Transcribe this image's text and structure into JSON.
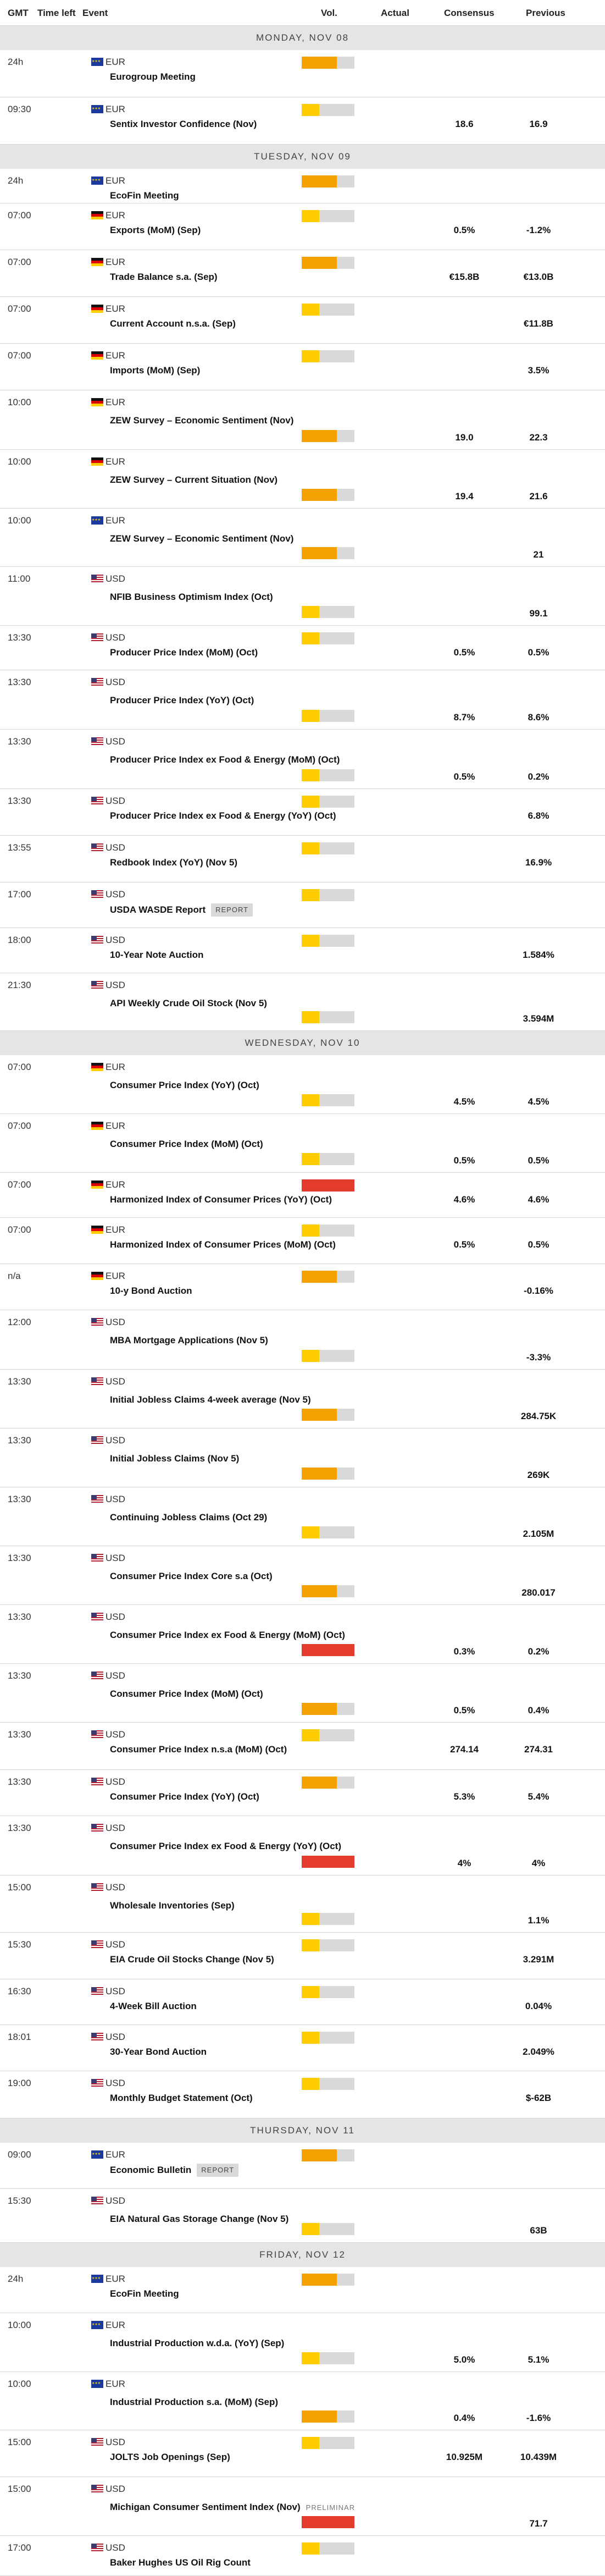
{
  "header": {
    "gmt": "GMT",
    "time_left": "Time left",
    "event": "Event",
    "vol": "Vol.",
    "actual": "Actual",
    "consensus": "Consensus",
    "previous": "Previous"
  },
  "colors": {
    "low": "#ffcc00",
    "medium": "#f5a100",
    "high": "#e33b2e",
    "day_bar": "#e5e5e5"
  },
  "days": [
    {
      "label": "MONDAY, NOV 08",
      "events": [
        {
          "time": "24h",
          "currency": "EUR",
          "flag": "eu-flag-icon",
          "name": "Eurogroup Meeting",
          "volatility": "medium",
          "consensus": "",
          "previous": ""
        },
        {
          "time": "09:30",
          "currency": "EUR",
          "flag": "eu-flag-icon",
          "name": "Sentix Investor Confidence (Nov)",
          "volatility": "low",
          "consensus": "18.6",
          "previous": "16.9"
        }
      ]
    },
    {
      "label": "TUESDAY, NOV 09",
      "events": [
        {
          "time": "24h",
          "currency": "EUR",
          "flag": "eu-flag-icon",
          "name": "EcoFin Meeting",
          "volatility": "medium",
          "consensus": "",
          "previous": ""
        },
        {
          "time": "07:00",
          "currency": "EUR",
          "flag": "de-flag-icon",
          "name": "Exports (MoM) (Sep)",
          "volatility": "low",
          "consensus": "0.5%",
          "previous": "-1.2%"
        },
        {
          "time": "07:00",
          "currency": "EUR",
          "flag": "de-flag-icon",
          "name": "Trade Balance s.a. (Sep)",
          "volatility": "medium",
          "consensus": "€15.8B",
          "previous": "€13.0B"
        },
        {
          "time": "07:00",
          "currency": "EUR",
          "flag": "de-flag-icon",
          "name": "Current Account n.s.a. (Sep)",
          "volatility": "low",
          "consensus": "",
          "previous": "€11.8B"
        },
        {
          "time": "07:00",
          "currency": "EUR",
          "flag": "de-flag-icon",
          "name": "Imports (MoM) (Sep)",
          "volatility": "low",
          "consensus": "",
          "previous": "3.5%"
        },
        {
          "time": "10:00",
          "currency": "EUR",
          "flag": "de-flag-icon",
          "name": "ZEW Survey – Economic Sentiment (Nov)",
          "volatility": "medium",
          "consensus": "19.0",
          "previous": "22.3"
        },
        {
          "time": "10:00",
          "currency": "EUR",
          "flag": "de-flag-icon",
          "name": "ZEW Survey – Current Situation (Nov)",
          "volatility": "medium",
          "consensus": "19.4",
          "previous": "21.6"
        },
        {
          "time": "10:00",
          "currency": "EUR",
          "flag": "eu-flag-icon",
          "name": "ZEW Survey – Economic Sentiment (Nov)",
          "volatility": "medium",
          "consensus": "",
          "previous": "21"
        },
        {
          "time": "11:00",
          "currency": "USD",
          "flag": "us-flag-icon",
          "name": "NFIB Business Optimism Index (Oct)",
          "volatility": "low",
          "consensus": "",
          "previous": "99.1"
        },
        {
          "time": "13:30",
          "currency": "USD",
          "flag": "us-flag-icon",
          "name": "Producer Price Index (MoM) (Oct)",
          "volatility": "low",
          "consensus": "0.5%",
          "previous": "0.5%"
        },
        {
          "time": "13:30",
          "currency": "USD",
          "flag": "us-flag-icon",
          "name": "Producer Price Index (YoY) (Oct)",
          "volatility": "low",
          "consensus": "8.7%",
          "previous": "8.6%"
        },
        {
          "time": "13:30",
          "currency": "USD",
          "flag": "us-flag-icon",
          "name": "Producer Price Index ex Food & Energy (MoM) (Oct)",
          "volatility": "low",
          "consensus": "0.5%",
          "previous": "0.2%"
        },
        {
          "time": "13:30",
          "currency": "USD",
          "flag": "us-flag-icon",
          "name": "Producer Price Index ex Food & Energy (YoY) (Oct)",
          "volatility": "low",
          "consensus": "",
          "previous": "6.8%"
        },
        {
          "time": "13:55",
          "currency": "USD",
          "flag": "us-flag-icon",
          "name": "Redbook Index (YoY) (Nov 5)",
          "volatility": "low",
          "consensus": "",
          "previous": "16.9%"
        },
        {
          "time": "17:00",
          "currency": "USD",
          "flag": "us-flag-icon",
          "name": "USDA WASDE Report",
          "tag": "REPORT",
          "volatility": "low",
          "consensus": "",
          "previous": ""
        },
        {
          "time": "18:00",
          "currency": "USD",
          "flag": "us-flag-icon",
          "name": "10-Year Note Auction",
          "volatility": "low",
          "consensus": "",
          "previous": "1.584%"
        },
        {
          "time": "21:30",
          "currency": "USD",
          "flag": "us-flag-icon",
          "name": "API Weekly Crude Oil Stock (Nov 5)",
          "volatility": "low",
          "consensus": "",
          "previous": "3.594M"
        }
      ]
    },
    {
      "label": "WEDNESDAY, NOV 10",
      "events": [
        {
          "time": "07:00",
          "currency": "EUR",
          "flag": "de-flag-icon",
          "name": "Consumer Price Index (YoY) (Oct)",
          "volatility": "low",
          "consensus": "4.5%",
          "previous": "4.5%"
        },
        {
          "time": "07:00",
          "currency": "EUR",
          "flag": "de-flag-icon",
          "name": "Consumer Price Index (MoM) (Oct)",
          "volatility": "low",
          "consensus": "0.5%",
          "previous": "0.5%"
        },
        {
          "time": "07:00",
          "currency": "EUR",
          "flag": "de-flag-icon",
          "name": "Harmonized Index of Consumer Prices (YoY) (Oct)",
          "volatility": "high",
          "consensus": "4.6%",
          "previous": "4.6%"
        },
        {
          "time": "07:00",
          "currency": "EUR",
          "flag": "de-flag-icon",
          "name": "Harmonized Index of Consumer Prices (MoM) (Oct)",
          "volatility": "low",
          "consensus": "0.5%",
          "previous": "0.5%"
        },
        {
          "time": "n/a",
          "currency": "EUR",
          "flag": "de-flag-icon",
          "name": "10-y Bond Auction",
          "volatility": "medium",
          "consensus": "",
          "previous": "-0.16%"
        },
        {
          "time": "12:00",
          "currency": "USD",
          "flag": "us-flag-icon",
          "name": "MBA Mortgage Applications (Nov 5)",
          "volatility": "low",
          "consensus": "",
          "previous": "-3.3%"
        },
        {
          "time": "13:30",
          "currency": "USD",
          "flag": "us-flag-icon",
          "name": "Initial Jobless Claims 4-week average (Nov 5)",
          "volatility": "medium",
          "consensus": "",
          "previous": "284.75K"
        },
        {
          "time": "13:30",
          "currency": "USD",
          "flag": "us-flag-icon",
          "name": "Initial Jobless Claims (Nov 5)",
          "volatility": "medium",
          "consensus": "",
          "previous": "269K"
        },
        {
          "time": "13:30",
          "currency": "USD",
          "flag": "us-flag-icon",
          "name": "Continuing Jobless Claims (Oct 29)",
          "volatility": "low",
          "consensus": "",
          "previous": "2.105M"
        },
        {
          "time": "13:30",
          "currency": "USD",
          "flag": "us-flag-icon",
          "name": "Consumer Price Index Core s.a (Oct)",
          "volatility": "medium",
          "consensus": "",
          "previous": "280.017"
        },
        {
          "time": "13:30",
          "currency": "USD",
          "flag": "us-flag-icon",
          "name": "Consumer Price Index ex Food & Energy (MoM) (Oct)",
          "volatility": "high",
          "consensus": "0.3%",
          "previous": "0.2%"
        },
        {
          "time": "13:30",
          "currency": "USD",
          "flag": "us-flag-icon",
          "name": "Consumer Price Index (MoM) (Oct)",
          "volatility": "medium",
          "consensus": "0.5%",
          "previous": "0.4%"
        },
        {
          "time": "13:30",
          "currency": "USD",
          "flag": "us-flag-icon",
          "name": "Consumer Price Index n.s.a (MoM) (Oct)",
          "volatility": "low",
          "consensus": "274.14",
          "previous": "274.31"
        },
        {
          "time": "13:30",
          "currency": "USD",
          "flag": "us-flag-icon",
          "name": "Consumer Price Index (YoY) (Oct)",
          "volatility": "medium",
          "consensus": "5.3%",
          "previous": "5.4%"
        },
        {
          "time": "13:30",
          "currency": "USD",
          "flag": "us-flag-icon",
          "name": "Consumer Price Index ex Food & Energy (YoY) (Oct)",
          "volatility": "high",
          "consensus": "4%",
          "previous": "4%"
        },
        {
          "time": "15:00",
          "currency": "USD",
          "flag": "us-flag-icon",
          "name": "Wholesale Inventories (Sep)",
          "volatility": "low",
          "consensus": "",
          "previous": "1.1%"
        },
        {
          "time": "15:30",
          "currency": "USD",
          "flag": "us-flag-icon",
          "name": "EIA Crude Oil Stocks Change (Nov 5)",
          "volatility": "low",
          "consensus": "",
          "previous": "3.291M"
        },
        {
          "time": "16:30",
          "currency": "USD",
          "flag": "us-flag-icon",
          "name": "4-Week Bill Auction",
          "volatility": "low",
          "consensus": "",
          "previous": "0.04%"
        },
        {
          "time": "18:01",
          "currency": "USD",
          "flag": "us-flag-icon",
          "name": "30-Year Bond Auction",
          "volatility": "low",
          "consensus": "",
          "previous": "2.049%"
        },
        {
          "time": "19:00",
          "currency": "USD",
          "flag": "us-flag-icon",
          "name": "Monthly Budget Statement (Oct)",
          "volatility": "low",
          "consensus": "",
          "previous": "$-62B"
        }
      ]
    },
    {
      "label": "THURSDAY, NOV 11",
      "events": [
        {
          "time": "09:00",
          "currency": "EUR",
          "flag": "eu-flag-icon",
          "name": "Economic Bulletin",
          "tag": "REPORT",
          "volatility": "medium",
          "consensus": "",
          "previous": ""
        },
        {
          "time": "15:30",
          "currency": "USD",
          "flag": "us-flag-icon",
          "name": "EIA Natural Gas Storage Change (Nov 5)",
          "volatility": "low",
          "consensus": "",
          "previous": "63B"
        }
      ]
    },
    {
      "label": "FRIDAY, NOV 12",
      "events": [
        {
          "time": "24h",
          "currency": "EUR",
          "flag": "eu-flag-icon",
          "name": "EcoFin Meeting",
          "volatility": "medium",
          "consensus": "",
          "previous": ""
        },
        {
          "time": "10:00",
          "currency": "EUR",
          "flag": "eu-flag-icon",
          "name": "Industrial Production w.d.a. (YoY) (Sep)",
          "volatility": "low",
          "consensus": "5.0%",
          "previous": "5.1%"
        },
        {
          "time": "10:00",
          "currency": "EUR",
          "flag": "eu-flag-icon",
          "name": "Industrial Production s.a. (MoM) (Sep)",
          "volatility": "medium",
          "consensus": "0.4%",
          "previous": "-1.6%"
        },
        {
          "time": "15:00",
          "currency": "USD",
          "flag": "us-flag-icon",
          "name": "JOLTS Job Openings (Sep)",
          "volatility": "low",
          "consensus": "10.925M",
          "previous": "10.439M"
        },
        {
          "time": "15:00",
          "currency": "USD",
          "flag": "us-flag-icon",
          "name": "Michigan Consumer Sentiment Index (Nov)",
          "tag_plain": "PRELIMINAR",
          "volatility": "high",
          "consensus": "",
          "previous": "71.7"
        },
        {
          "time": "17:00",
          "currency": "USD",
          "flag": "us-flag-icon",
          "name": "Baker Hughes US Oil Rig Count",
          "volatility": "low",
          "consensus": "",
          "previous": ""
        }
      ]
    }
  ]
}
